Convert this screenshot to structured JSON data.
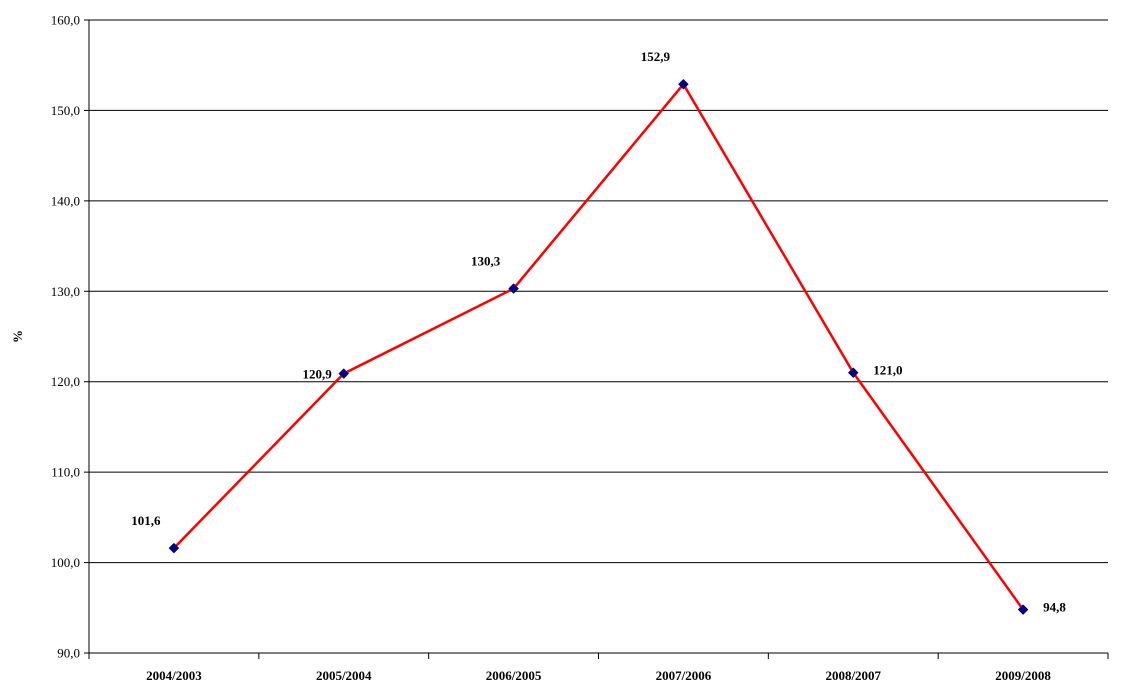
{
  "chart_data": {
    "type": "line",
    "categories": [
      "2004/2003",
      "2005/2004",
      "2006/2005",
      "2007/2006",
      "2008/2007",
      "2009/2008"
    ],
    "series": [
      {
        "values": [
          101.6,
          120.9,
          130.3,
          152.9,
          121.0,
          94.8
        ]
      }
    ],
    "data_labels": [
      "101,6",
      "120,9",
      "130,3",
      "152,9",
      "121,0",
      "94,8"
    ],
    "y_tick_labels": [
      "90,0",
      "100,0",
      "110,0",
      "120,0",
      "130,0",
      "140,0",
      "150,0",
      "160,0"
    ],
    "y_ticks": [
      90,
      100,
      110,
      120,
      130,
      140,
      150,
      160
    ],
    "ylim": [
      90,
      160
    ],
    "ylabel": "%",
    "grid": true,
    "line_color": "#ff0000",
    "marker_color": "#000080"
  }
}
